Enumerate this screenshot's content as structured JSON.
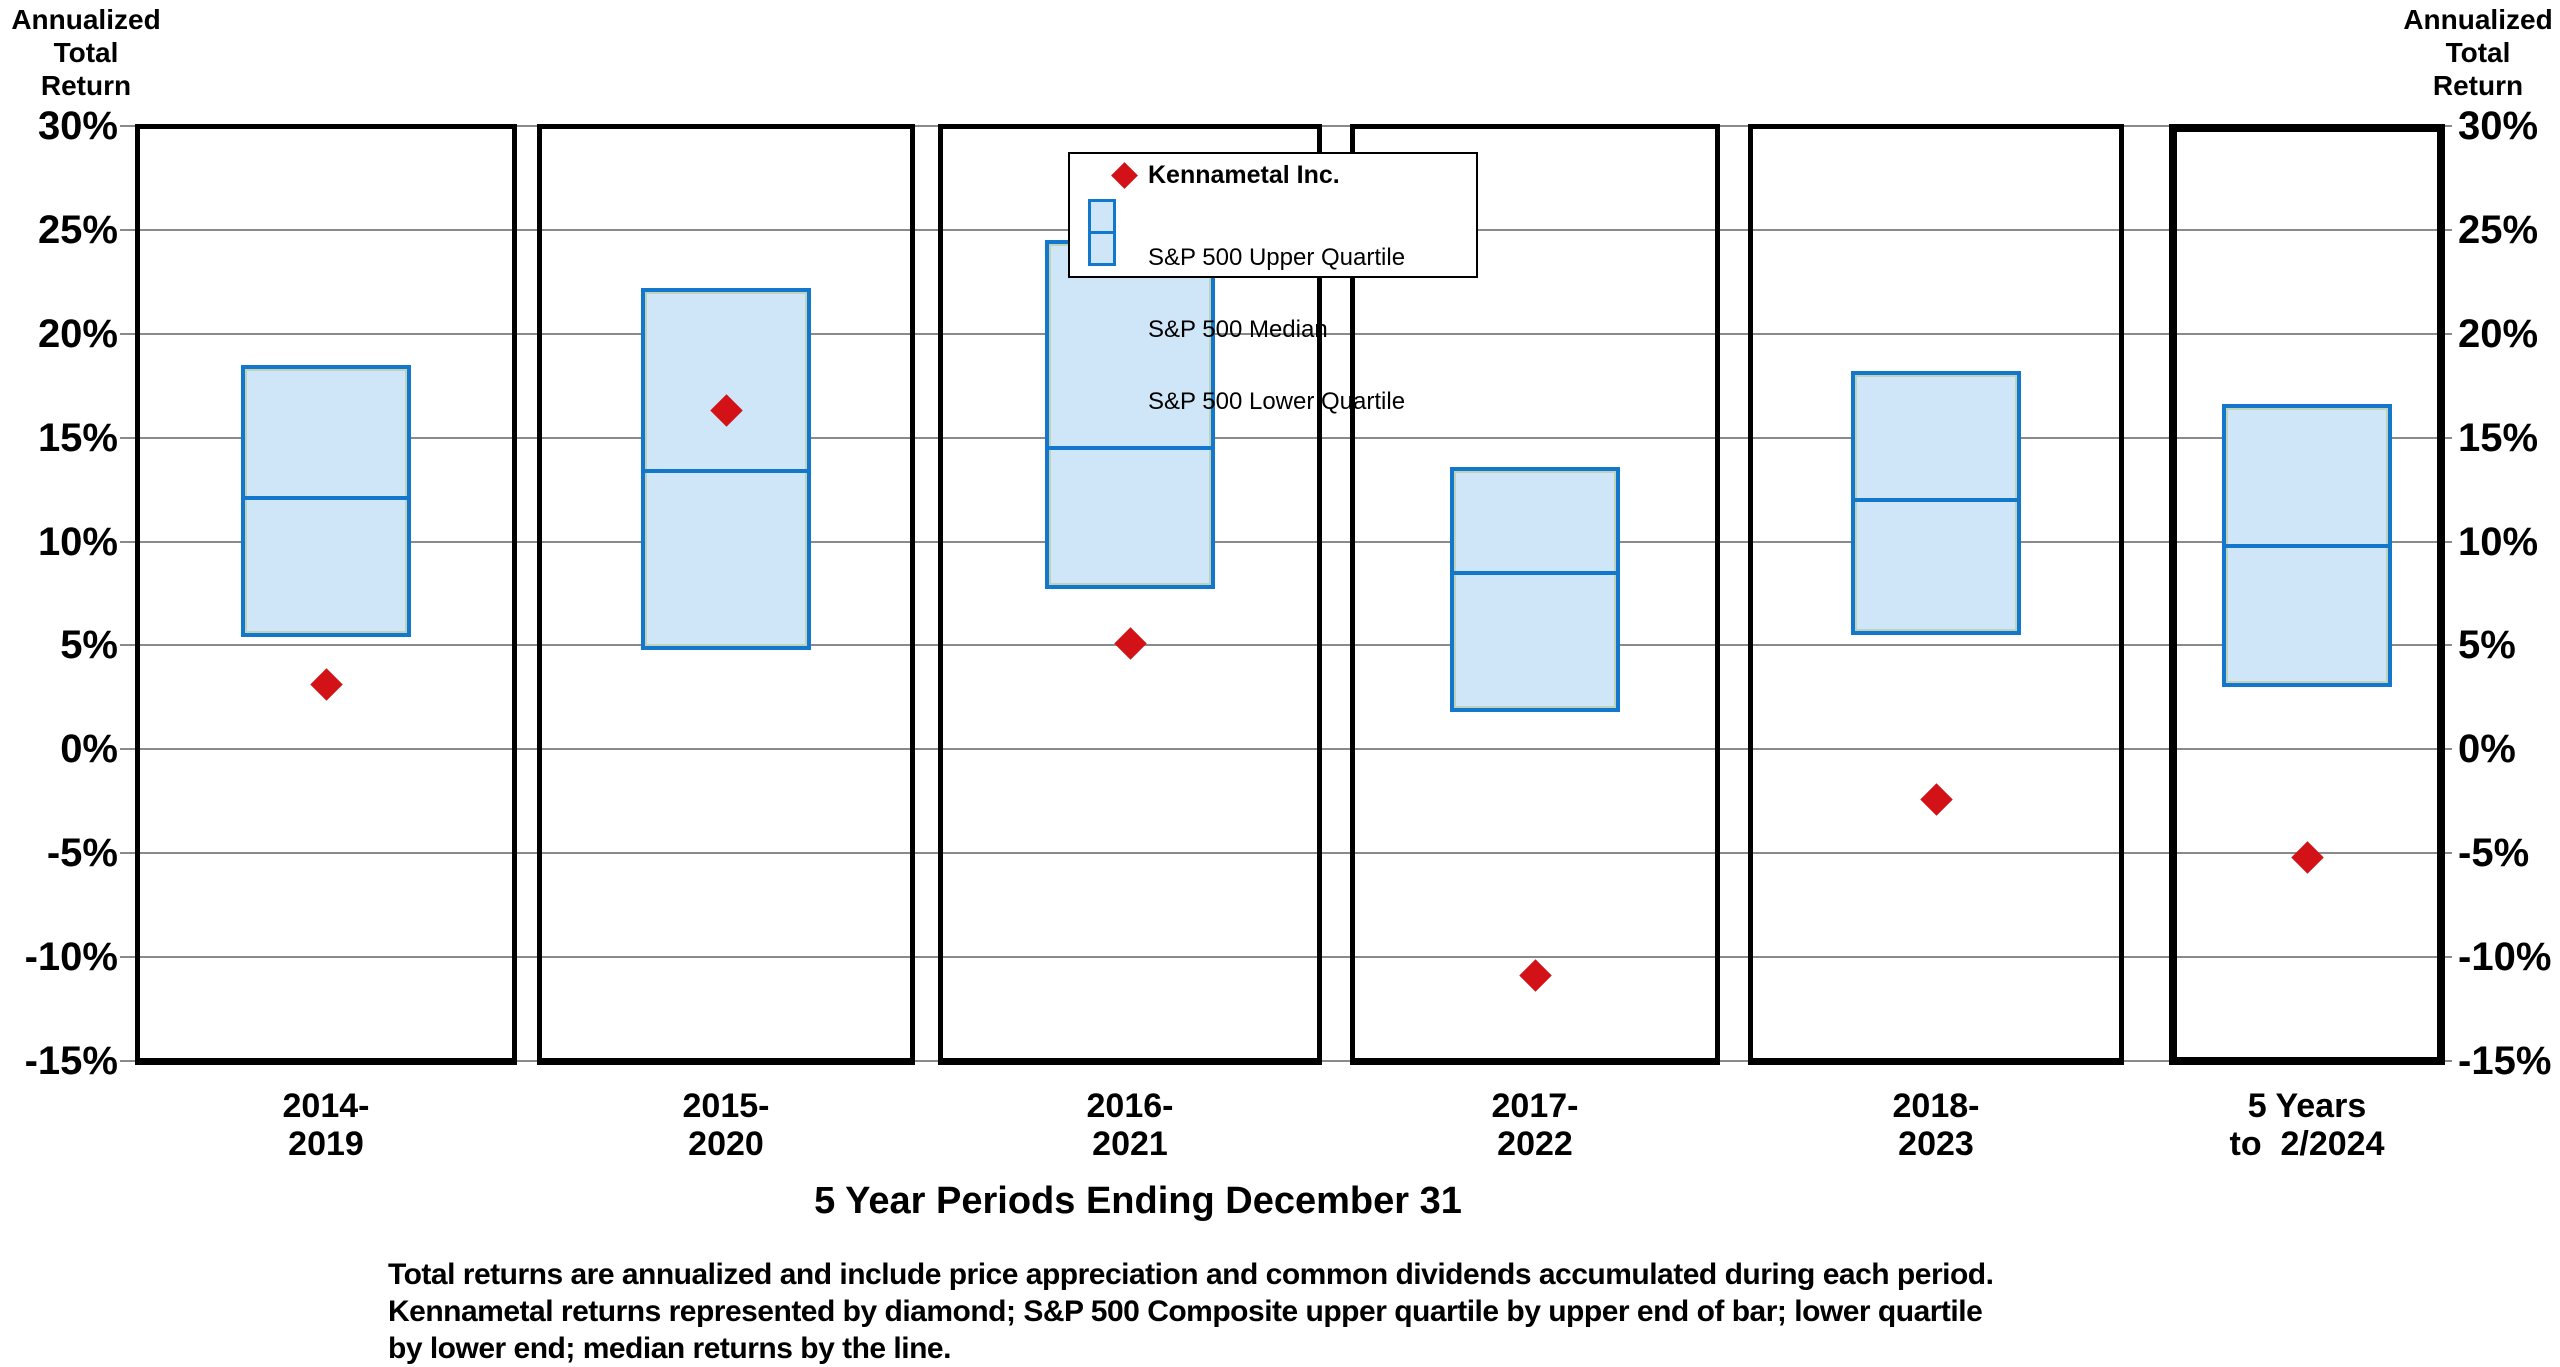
{
  "left_axis_title_lines": [
    "Annualized",
    "Total",
    "Return"
  ],
  "right_axis_title_lines": [
    "Annualized",
    "Total",
    "Return"
  ],
  "y_tick_labels": [
    "30%",
    "25%",
    "20%",
    "15%",
    "10%",
    "5%",
    "0%",
    "-5%",
    "-10%",
    "-15%"
  ],
  "legend": {
    "marker_label": "Kennametal Inc.",
    "bar_labels": [
      "S&P 500 Upper Quartile",
      "S&P 500 Median",
      "S&P 500 Lower Quartile"
    ]
  },
  "x_axis_title": "5 Year Periods Ending December 31",
  "footnote_lines": [
    "Total returns are annualized and include price appreciation and common dividends accumulated during each period.",
    "Kennametal returns represented by diamond; S&P 500 Composite upper quartile by upper end of bar; lower quartile",
    "by lower end; median returns by the line."
  ],
  "chart_data": {
    "type": "boxplot",
    "description": "Box bars show S&P 500 upper quartile (top of bar), median (line) and lower quartile (bottom of bar); red diamond marks Kennametal Inc. annualized total return for each 5-year period.",
    "categories": [
      [
        "2014-",
        "2019"
      ],
      [
        "2015-",
        "2020"
      ],
      [
        "2016-",
        "2021"
      ],
      [
        "2017-",
        "2022"
      ],
      [
        "2018-",
        "2023"
      ],
      [
        "5 Years",
        "to  2/2024"
      ]
    ],
    "series": [
      {
        "name": "Kennametal Inc.",
        "values": [
          3.1,
          16.3,
          5.1,
          -10.9,
          -2.4,
          -5.2
        ]
      },
      {
        "name": "S&P 500 Upper Quartile",
        "values": [
          18.5,
          22.2,
          24.5,
          13.6,
          18.2,
          16.6
        ]
      },
      {
        "name": "S&P 500 Median",
        "values": [
          12.1,
          13.4,
          14.5,
          8.5,
          12.0,
          9.8
        ]
      },
      {
        "name": "S&P 500 Lower Quartile",
        "values": [
          5.4,
          4.8,
          7.7,
          1.8,
          5.5,
          3.0
        ]
      }
    ],
    "ylim": [
      -15,
      30
    ],
    "y_tick_step": 5,
    "grid": "horizontal-gray-lines",
    "legend_position": "top-center",
    "last_category_highlighted_with_bold_border": true
  },
  "colors": {
    "box_fill": "#cfe5f8",
    "box_border": "#1377cc",
    "box_inner_edge": "#9db23f",
    "marker": "#d21217",
    "grid": "#8a8a8a",
    "panel_border": "#000000",
    "legend_border": "#000000",
    "background": "#ffffff",
    "text": "#000000"
  }
}
